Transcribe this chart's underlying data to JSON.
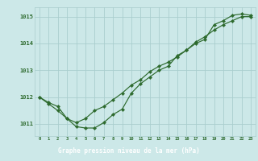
{
  "title": "Graphe pression niveau de la mer (hPa)",
  "xlabel_hours": [
    0,
    1,
    2,
    3,
    4,
    5,
    6,
    7,
    8,
    9,
    10,
    11,
    12,
    13,
    14,
    15,
    16,
    17,
    18,
    19,
    20,
    21,
    22,
    23
  ],
  "line1": [
    1012.0,
    1011.8,
    1011.65,
    1011.2,
    1010.9,
    1010.85,
    1010.85,
    1011.05,
    1011.35,
    1011.55,
    1012.15,
    1012.5,
    1012.75,
    1013.0,
    1013.15,
    1013.55,
    1013.75,
    1014.0,
    1014.15,
    1014.7,
    1014.85,
    1015.05,
    1015.1,
    1015.05
  ],
  "line2": [
    1012.0,
    1011.75,
    1011.5,
    1011.2,
    1011.05,
    1011.2,
    1011.5,
    1011.65,
    1011.9,
    1012.15,
    1012.45,
    1012.65,
    1012.95,
    1013.15,
    1013.3,
    1013.5,
    1013.75,
    1014.05,
    1014.25,
    1014.5,
    1014.7,
    1014.85,
    1015.0,
    1015.0
  ],
  "ylim": [
    1010.55,
    1015.35
  ],
  "yticks": [
    1011,
    1012,
    1013,
    1014,
    1015
  ],
  "line_color": "#2d6a2d",
  "bg_color": "#cce8e8",
  "grid_color": "#aacece",
  "title_bg": "#2d6a2d",
  "title_fg": "#ffffff",
  "title_fontsize": 5.5
}
